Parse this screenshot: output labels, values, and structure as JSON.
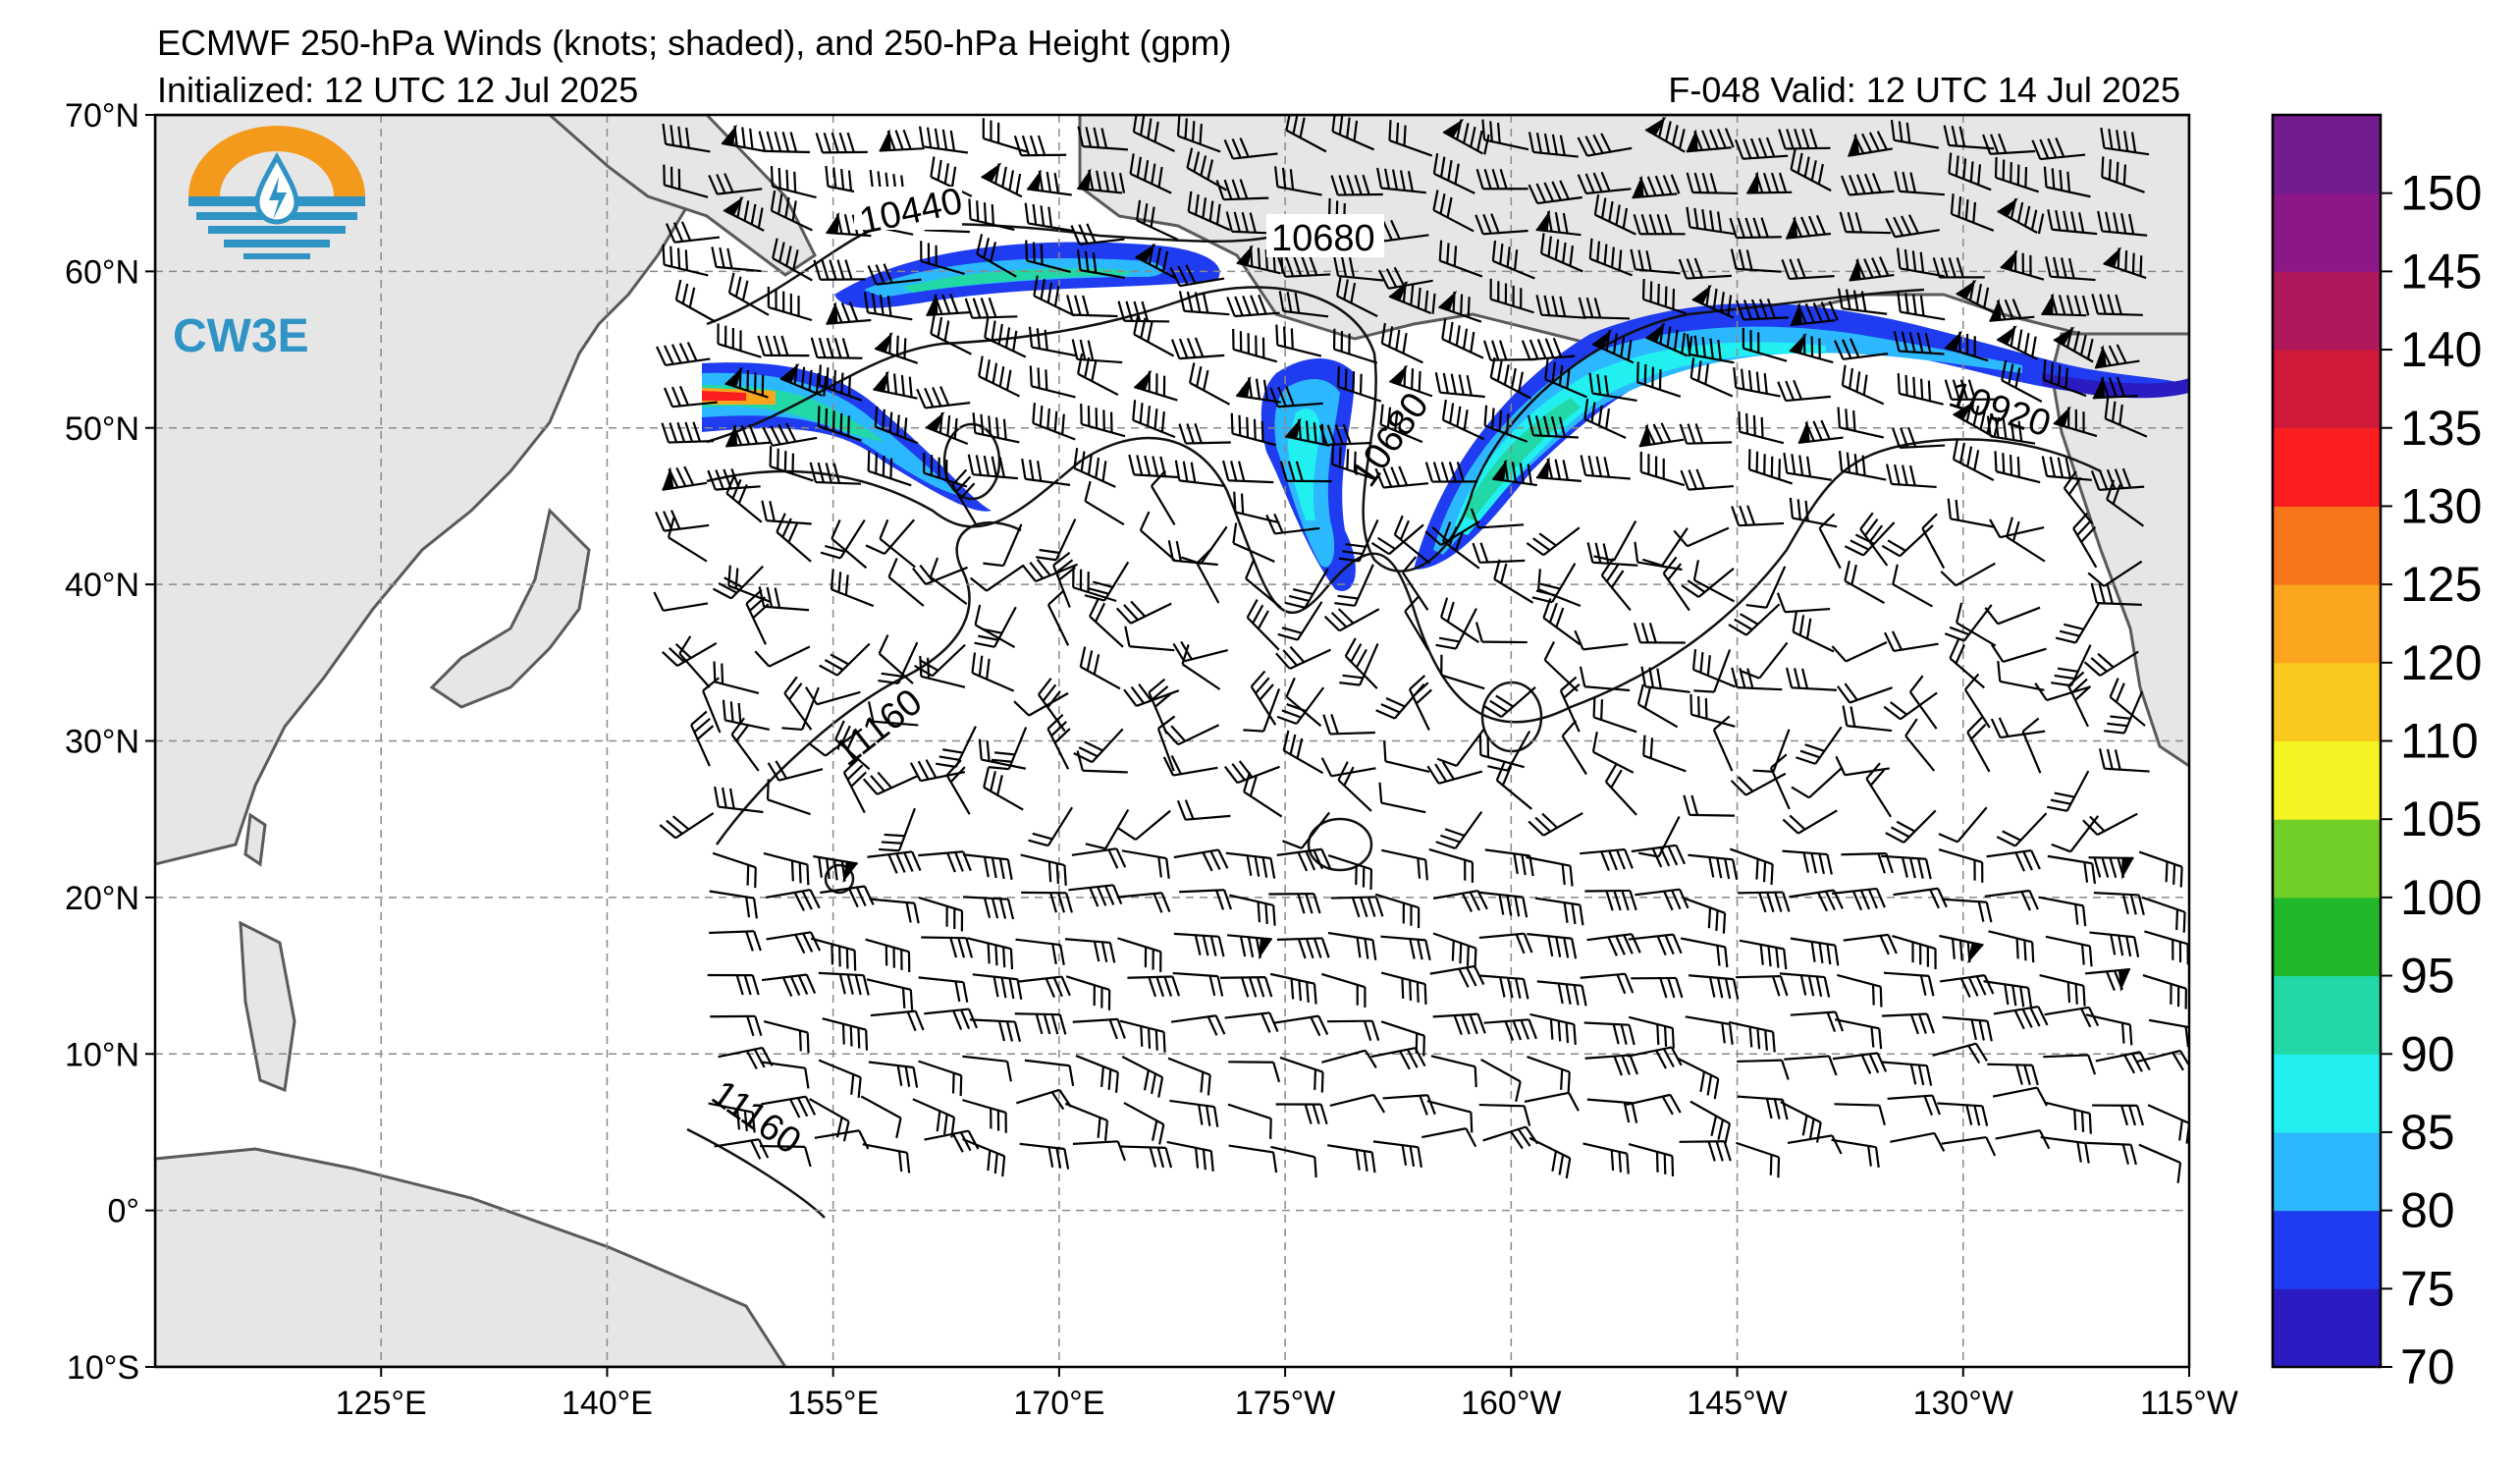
{
  "header": {
    "title": "ECMWF 250-hPa Winds (knots; shaded), and 250-hPa Height (gpm)",
    "initialized": "Initialized: 12 UTC 12 Jul 2025",
    "forecast": "F-048  Valid: 12 UTC 14 Jul 2025"
  },
  "logo": {
    "text": "CW3E"
  },
  "axes": {
    "lat_labels": [
      "70°N",
      "60°N",
      "50°N",
      "40°N",
      "30°N",
      "20°N",
      "10°N",
      "0°",
      "10°S"
    ],
    "lat_values": [
      70,
      60,
      50,
      40,
      30,
      20,
      10,
      0,
      -10
    ],
    "lon_labels": [
      "125°E",
      "140°E",
      "155°E",
      "170°E",
      "175°W",
      "160°W",
      "145°W",
      "130°W",
      "115°W"
    ],
    "lon_values": [
      125,
      140,
      155,
      170,
      185,
      200,
      215,
      230,
      245
    ],
    "lon_range": [
      110,
      245
    ],
    "lat_range": [
      -10,
      70
    ],
    "grid": "dashed"
  },
  "colorbar": {
    "labels": [
      "150",
      "145",
      "140",
      "135",
      "130",
      "125",
      "120",
      "110",
      "105",
      "100",
      "95",
      "90",
      "85",
      "80",
      "75",
      "70"
    ],
    "bins": [
      70,
      75,
      80,
      85,
      90,
      95,
      100,
      105,
      110,
      120,
      125,
      130,
      135,
      140,
      145,
      150,
      155
    ],
    "colors": [
      "#2a1cc0",
      "#1f3cf0",
      "#2cb8ff",
      "#22f0f0",
      "#22d8a6",
      "#22b82c",
      "#72cf28",
      "#f4f422",
      "#fbc81e",
      "#fba41e",
      "#f77418",
      "#fb1e1e",
      "#d11a3a",
      "#b0185c",
      "#8c1888",
      "#731c90"
    ]
  },
  "contour_labels": [
    {
      "text": "10440"
    },
    {
      "text": "10680"
    },
    {
      "text": "10680"
    },
    {
      "text": "10920"
    },
    {
      "text": "11160"
    },
    {
      "text": "11160"
    }
  ],
  "colors": {
    "land": "#e6e6e6",
    "coast": "#5a5a5a",
    "grid": "#8a8a8a"
  }
}
